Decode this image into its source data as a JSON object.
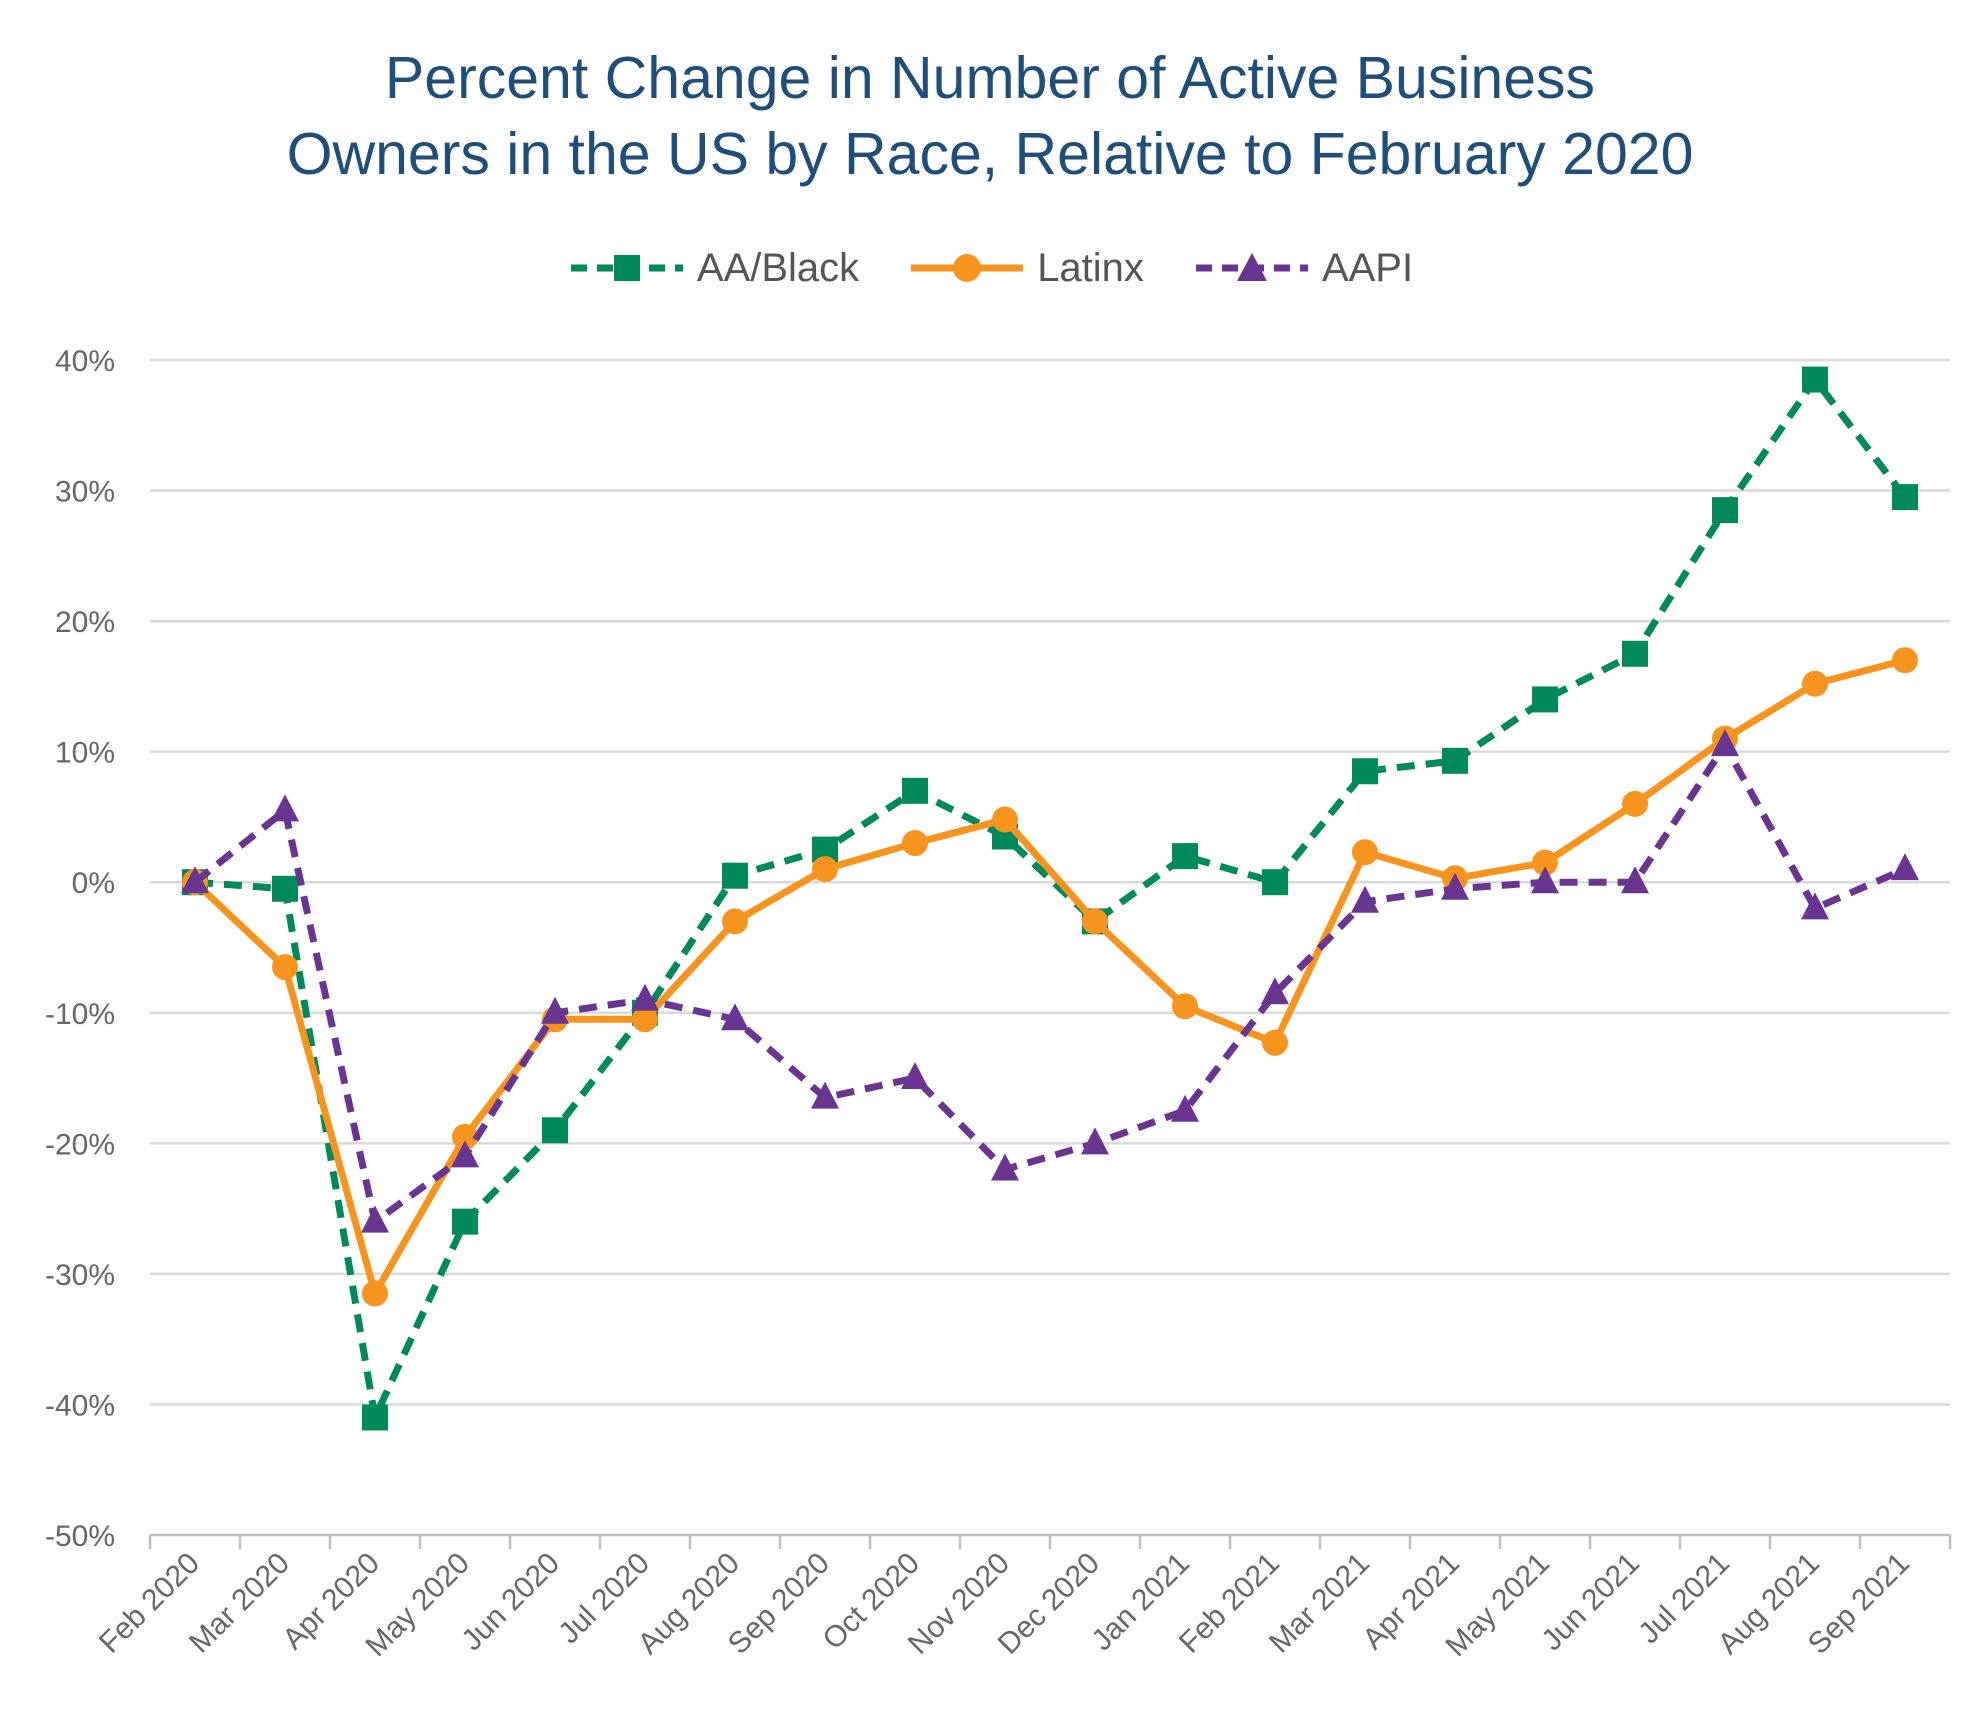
{
  "chart_data": {
    "type": "line",
    "title_lines": [
      "Percent Change in Number of Active Business",
      "Owners in the US by Race, Relative to February 2020"
    ],
    "xlabel": "",
    "ylabel": "",
    "ylim": [
      -50,
      40
    ],
    "yticks": [
      40,
      30,
      20,
      10,
      0,
      -10,
      -20,
      -30,
      -40,
      -50
    ],
    "ytick_labels": [
      "40%",
      "30%",
      "20%",
      "10%",
      "0%",
      "-10%",
      "-20%",
      "-30%",
      "-40%",
      "-50%"
    ],
    "grid": true,
    "legend_position": "top-center",
    "categories": [
      "Feb 2020",
      "Mar 2020",
      "Apr 2020",
      "May 2020",
      "Jun 2020",
      "Jul 2020",
      "Aug 2020",
      "Sep 2020",
      "Oct 2020",
      "Nov 2020",
      "Dec 2020",
      "Jan 2021",
      "Feb 2021",
      "Mar 2021",
      "Apr 2021",
      "May 2021",
      "Jun 2021",
      "Jul 2021",
      "Aug 2021",
      "Sep 2021"
    ],
    "series": [
      {
        "name": "AA/Black",
        "color": "#008a5a",
        "marker": "square",
        "dash": "dashed",
        "values": [
          0,
          -0.5,
          -41,
          -26,
          -19,
          -10,
          0.5,
          2.5,
          7,
          3.5,
          -3,
          2,
          0,
          8.5,
          9.3,
          14,
          17.5,
          28.5,
          38.5,
          29.5
        ]
      },
      {
        "name": "Latinx",
        "color": "#f7941d",
        "marker": "circle",
        "dash": "solid",
        "values": [
          0,
          -6.5,
          -31.5,
          -19.5,
          -10.5,
          -10.5,
          -3,
          1,
          3,
          4.8,
          -3,
          -9.5,
          -12.3,
          2.3,
          0.3,
          1.5,
          6,
          11,
          15.2,
          17
        ]
      },
      {
        "name": "AAPI",
        "color": "#6a3590",
        "marker": "triangle",
        "dash": "dashed",
        "values": [
          0,
          5.5,
          -26,
          -21,
          -10,
          -9,
          -10.5,
          -16.5,
          -15,
          -22,
          -20,
          -17.5,
          -8.5,
          -1.5,
          -0.5,
          0,
          0,
          10.5,
          -2,
          1
        ]
      }
    ]
  }
}
